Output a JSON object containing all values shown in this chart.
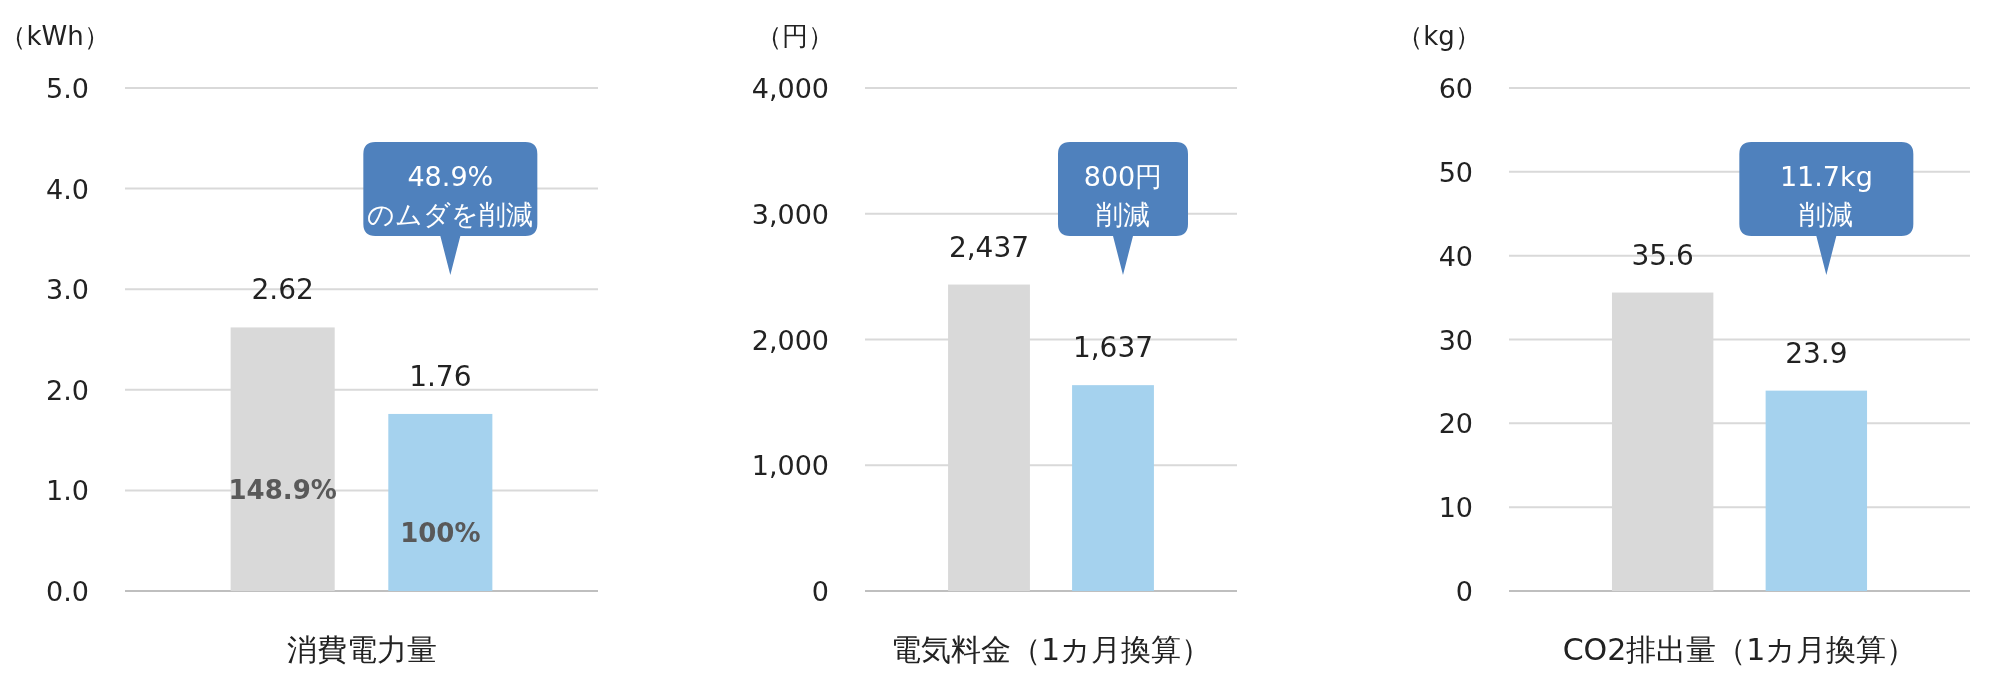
{
  "chart_data": [
    {
      "type": "bar",
      "xlabel": "消費電力量",
      "ylabel": "（kWh）",
      "categories": [
        null,
        null
      ],
      "values": [
        2.62,
        1.76
      ],
      "colors": [
        "#d9d9d9",
        "#a5d2ee"
      ],
      "ylim": [
        0,
        5
      ],
      "yticks": [
        {
          "value": 0,
          "label": "0.0"
        },
        {
          "value": 1,
          "label": "1.0"
        },
        {
          "value": 2,
          "label": "2.0"
        },
        {
          "value": 3,
          "label": "3.0"
        },
        {
          "value": 4,
          "label": "4.0"
        },
        {
          "value": 5,
          "label": "5.0"
        }
      ],
      "grid": "y",
      "data_labels": true,
      "annotations": [
        "48.9%",
        "のムダを削減",
        "148.9%",
        "100%"
      ]
    },
    {
      "type": "bar",
      "xlabel": "電気料金（1カ月換算）",
      "ylabel": "（円）",
      "categories": [
        null,
        null
      ],
      "values": [
        2437,
        1637
      ],
      "value_labels": [
        "2,437",
        "1,637"
      ],
      "colors": [
        "#d9d9d9",
        "#a5d2ee"
      ],
      "ylim": [
        0,
        4000
      ],
      "yticks": [
        0,
        {
          "value": 1000,
          "label": "1,000"
        },
        {
          "value": 2000,
          "label": "2,000"
        },
        {
          "value": 3000,
          "label": "3,000"
        },
        {
          "value": 4000,
          "label": "4,000"
        }
      ],
      "grid": "y",
      "annotations": [
        "800円",
        "削減"
      ]
    },
    {
      "type": "bar",
      "xlabel": "CO2排出量（1カ月換算）",
      "ylabel": "（kg）",
      "categories": [
        null,
        null
      ],
      "values": [
        35.6,
        23.9
      ],
      "colors": [
        "#d9d9d9",
        "#a5d2ee"
      ],
      "ylim": [
        0,
        60
      ],
      "yticks": [
        0,
        10,
        20,
        30,
        40,
        50,
        60
      ],
      "grid": "y",
      "data_labels": true,
      "annotations": [
        "11.7kg",
        "削減"
      ]
    }
  ]
}
